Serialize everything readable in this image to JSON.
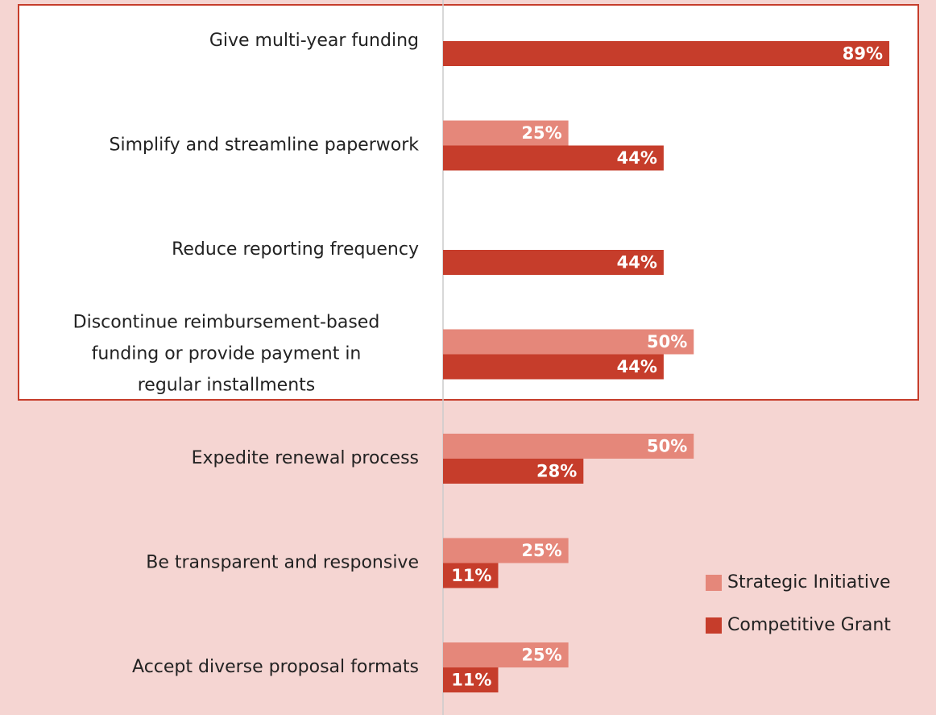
{
  "chart_data": {
    "type": "bar",
    "orientation": "horizontal",
    "categories": [
      "Give multi-year funding",
      "Simplify and streamline paperwork",
      "Reduce reporting frequency",
      [
        "Discontinue reimbursement-based",
        "funding or provide payment in",
        "regular installments"
      ],
      "Expedite renewal process",
      "Be transparent and responsive",
      "Accept diverse proposal formats"
    ],
    "series": [
      {
        "name": "Strategic Initiative",
        "color": "#e5877a",
        "values": [
          null,
          25,
          null,
          50,
          50,
          25,
          25
        ],
        "value_labels": [
          null,
          "25%",
          null,
          "50%",
          "50%",
          "25%",
          "25%"
        ]
      },
      {
        "name": "Competitive Grant",
        "color": "#c63d2b",
        "values": [
          89,
          44,
          44,
          44,
          28,
          11,
          11
        ],
        "value_labels": [
          "89%",
          "44%",
          "44%",
          "44%",
          "28%",
          "11%",
          "11%"
        ]
      }
    ],
    "legend": "lower right"
  }
}
